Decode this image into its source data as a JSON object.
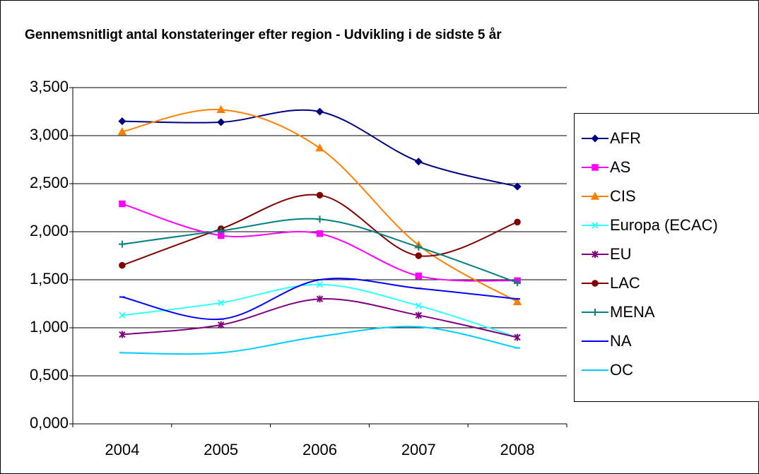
{
  "chart_data": {
    "type": "line",
    "title": "Gennemsnitligt antal konstateringer efter region - Udvikling i de sidste 5 år",
    "categories": [
      "2004",
      "2005",
      "2006",
      "2007",
      "2008"
    ],
    "ylim": [
      0,
      3.5
    ],
    "yticks": [
      {
        "value": 0,
        "label": "0,000"
      },
      {
        "value": 0.5,
        "label": "0,500"
      },
      {
        "value": 1,
        "label": "1,000"
      },
      {
        "value": 1.5,
        "label": "1,500"
      },
      {
        "value": 2,
        "label": "2,000"
      },
      {
        "value": 2.5,
        "label": "2,500"
      },
      {
        "value": 3,
        "label": "3,000"
      },
      {
        "value": 3.5,
        "label": "3,500"
      }
    ],
    "grid": true,
    "legend": "right",
    "series": [
      {
        "name": "AFR",
        "color": "#000080",
        "marker": "diamond",
        "values": [
          3.15,
          3.14,
          3.25,
          2.73,
          2.47
        ]
      },
      {
        "name": "AS",
        "color": "#ff00ff",
        "marker": "square",
        "values": [
          2.29,
          1.96,
          1.98,
          1.54,
          1.49
        ]
      },
      {
        "name": "CIS",
        "color": "#ff8000",
        "marker": "triangle",
        "values": [
          3.04,
          3.27,
          2.87,
          1.86,
          1.27
        ]
      },
      {
        "name": "Europa (ECAC)",
        "color": "#33ffff",
        "marker": "x",
        "values": [
          1.13,
          1.26,
          1.45,
          1.23,
          0.9
        ]
      },
      {
        "name": "EU",
        "color": "#800080",
        "marker": "star",
        "values": [
          0.93,
          1.03,
          1.3,
          1.13,
          0.9
        ]
      },
      {
        "name": "LAC",
        "color": "#800000",
        "marker": "circle",
        "values": [
          1.65,
          2.03,
          2.38,
          1.75,
          2.1
        ]
      },
      {
        "name": "MENA",
        "color": "#008080",
        "marker": "plus",
        "values": [
          1.87,
          2.01,
          2.13,
          1.84,
          1.47
        ]
      },
      {
        "name": "NA",
        "color": "#0000ff",
        "marker": "dash",
        "values": [
          1.32,
          1.09,
          1.5,
          1.41,
          1.3
        ]
      },
      {
        "name": "OC",
        "color": "#00ccff",
        "marker": "dash",
        "values": [
          0.74,
          0.74,
          0.91,
          1.01,
          0.79
        ]
      }
    ]
  }
}
